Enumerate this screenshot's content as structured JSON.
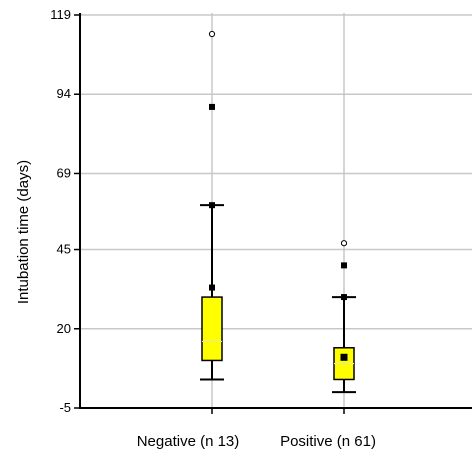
{
  "chart_data": {
    "type": "boxplot",
    "title": "",
    "xlabel": "",
    "ylabel": "Intubation time (days)",
    "ylim": [
      -5,
      119
    ],
    "yticks": [
      -5,
      20,
      45,
      69,
      94,
      119
    ],
    "grid": true,
    "colors": {
      "box_fill": "#ffff00",
      "box_stroke": "#000000",
      "grid": "#c8c8c8",
      "median_line": "#e8e8a0"
    },
    "categories": [
      "Negative (n 13)",
      "Positive (n 61)"
    ],
    "groups": [
      {
        "label": "Negative (n 13)",
        "whisker_low": 4,
        "q1": 10,
        "median": 16,
        "q3": 30,
        "whisker_high": 59,
        "mean": null,
        "percentile_markers": [
          33,
          59,
          90
        ],
        "outliers": [
          113
        ]
      },
      {
        "label": "Positive (n 61)",
        "whisker_low": 0,
        "q1": 4,
        "median": 9,
        "q3": 14,
        "whisker_high": 30,
        "mean": 11,
        "percentile_markers": [
          30,
          40
        ],
        "outliers": [
          47
        ]
      }
    ]
  }
}
